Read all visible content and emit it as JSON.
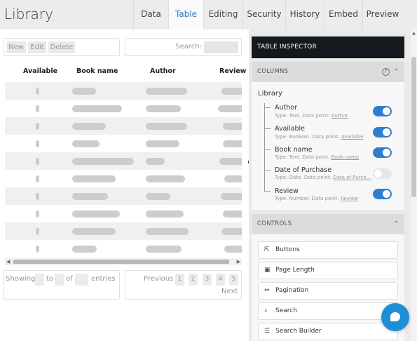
{
  "app": {
    "title": "Library"
  },
  "tabs": [
    {
      "label": "Data",
      "active": false
    },
    {
      "label": "Table",
      "active": true
    },
    {
      "label": "Editing",
      "active": false
    },
    {
      "label": "Security",
      "active": false
    },
    {
      "label": "History",
      "active": false
    },
    {
      "label": "Embed",
      "active": false
    },
    {
      "label": "Preview",
      "active": false
    }
  ],
  "toolbar": {
    "new_label": "New",
    "edit_label": "Edit",
    "delete_label": "Delete",
    "search_label": "Search:"
  },
  "table": {
    "columns": [
      "Available",
      "Book name",
      "Author",
      "Review"
    ]
  },
  "info": {
    "showing": "Showing",
    "to": "to",
    "of": "of",
    "entries": "entries"
  },
  "pager": {
    "previous": "Previous",
    "next": "Next",
    "pages": [
      "1",
      "2",
      "3",
      "4",
      "5"
    ]
  },
  "inspector": {
    "title": "TABLE INSPECTOR",
    "columns_section": "COLUMNS",
    "help": "?",
    "library_label": "Library",
    "fields": [
      {
        "name": "Author",
        "desc_prefix": "Type: Text. Data point: ",
        "data_point": "Author",
        "enabled": true
      },
      {
        "name": "Available",
        "desc_prefix": "Type: Boolean. Data point: ",
        "data_point": "Available",
        "enabled": true
      },
      {
        "name": "Book name",
        "desc_prefix": "Type: Text. Data point: ",
        "data_point": "Book name",
        "enabled": true
      },
      {
        "name": "Date of Purchase",
        "desc_prefix": "Type: Date. Data point: ",
        "data_point": "Date of Purch...",
        "enabled": false
      },
      {
        "name": "Review",
        "desc_prefix": "Type: Number. Data point: ",
        "data_point": "Review",
        "enabled": true
      }
    ],
    "controls_section": "CONTROLS",
    "controls": [
      {
        "label": "Buttons",
        "icon": "cursor-icon"
      },
      {
        "label": "Page Length",
        "icon": "page-length-icon"
      },
      {
        "label": "Pagination",
        "icon": "pagination-icon"
      },
      {
        "label": "Search",
        "icon": "search-icon"
      },
      {
        "label": "Search Builder",
        "icon": "search-builder-icon"
      }
    ]
  },
  "colors": {
    "accent": "#2f7dd1",
    "header_dark": "#15191d",
    "chat": "#1e8fd6"
  }
}
